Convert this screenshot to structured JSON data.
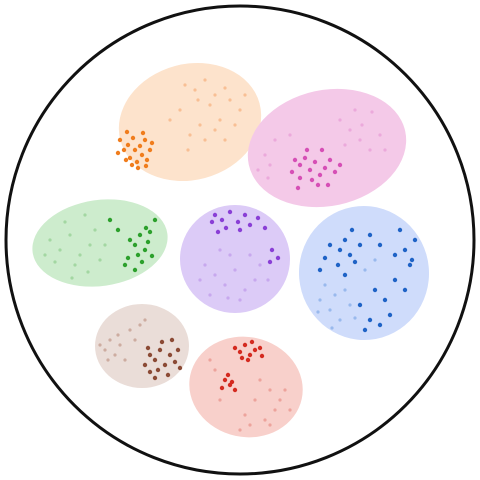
{
  "chart_data": {
    "type": "scatter",
    "title": "",
    "xlabel": "",
    "ylabel": "",
    "grid": false,
    "legend": "none",
    "boundary": "circle",
    "series": [
      {
        "color": "#f07d1d",
        "light_color": "#f7b88a",
        "fill": "#fde3cc",
        "strong_points": [
          [
            120,
            140
          ],
          [
            124,
            150
          ],
          [
            128,
            145
          ],
          [
            130,
            158
          ],
          [
            133,
            138
          ],
          [
            135,
            150
          ],
          [
            137,
            162
          ],
          [
            140,
            146
          ],
          [
            142,
            155
          ],
          [
            145,
            140
          ],
          [
            147,
            160
          ],
          [
            150,
            150
          ],
          [
            127,
            132
          ],
          [
            143,
            133
          ],
          [
            138,
            168
          ],
          [
            132,
            165
          ],
          [
            126,
            160
          ],
          [
            152,
            143
          ],
          [
            118,
            153
          ],
          [
            146,
            166
          ]
        ],
        "weak_points": [
          [
            185,
            85
          ],
          [
            195,
            90
          ],
          [
            205,
            80
          ],
          [
            215,
            95
          ],
          [
            225,
            88
          ],
          [
            210,
            105
          ],
          [
            198,
            100
          ],
          [
            230,
            100
          ],
          [
            240,
            110
          ],
          [
            220,
            120
          ],
          [
            200,
            125
          ],
          [
            190,
            135
          ],
          [
            205,
            140
          ],
          [
            215,
            130
          ],
          [
            225,
            140
          ],
          [
            235,
            125
          ],
          [
            180,
            110
          ],
          [
            170,
            120
          ],
          [
            245,
            95
          ],
          [
            188,
            150
          ]
        ]
      },
      {
        "color": "#d64fb6",
        "light_color": "#e9a3d8",
        "fill": "#f4c9e8",
        "strong_points": [
          [
            295,
            160
          ],
          [
            300,
            165
          ],
          [
            305,
            158
          ],
          [
            310,
            170
          ],
          [
            315,
            162
          ],
          [
            320,
            175
          ],
          [
            325,
            168
          ],
          [
            330,
            160
          ],
          [
            312,
            180
          ],
          [
            318,
            185
          ],
          [
            300,
            178
          ],
          [
            292,
            172
          ],
          [
            335,
            172
          ],
          [
            322,
            150
          ],
          [
            307,
            150
          ],
          [
            328,
            185
          ],
          [
            298,
            188
          ],
          [
            340,
            165
          ]
        ],
        "weak_points": [
          [
            265,
            155
          ],
          [
            270,
            165
          ],
          [
            258,
            170
          ],
          [
            275,
            140
          ],
          [
            290,
            135
          ],
          [
            340,
            120
          ],
          [
            350,
            130
          ],
          [
            360,
            140
          ],
          [
            370,
            150
          ],
          [
            355,
            110
          ],
          [
            380,
            135
          ],
          [
            345,
            145
          ],
          [
            268,
            178
          ],
          [
            385,
            150
          ],
          [
            362,
            125
          ],
          [
            372,
            112
          ]
        ]
      },
      {
        "color": "#2ca02c",
        "light_color": "#9bd49a",
        "fill": "#cdeccd",
        "strong_points": [
          [
            130,
            240
          ],
          [
            135,
            245
          ],
          [
            140,
            235
          ],
          [
            145,
            250
          ],
          [
            138,
            255
          ],
          [
            142,
            262
          ],
          [
            148,
            242
          ],
          [
            128,
            258
          ],
          [
            150,
            232
          ],
          [
            155,
            220
          ],
          [
            110,
            220
          ],
          [
            118,
            230
          ],
          [
            125,
            265
          ],
          [
            135,
            270
          ],
          [
            152,
            256
          ],
          [
            146,
            228
          ]
        ],
        "weak_points": [
          [
            50,
            240
          ],
          [
            60,
            250
          ],
          [
            70,
            235
          ],
          [
            80,
            255
          ],
          [
            90,
            245
          ],
          [
            75,
            265
          ],
          [
            55,
            262
          ],
          [
            95,
            230
          ],
          [
            85,
            215
          ],
          [
            65,
            222
          ],
          [
            100,
            260
          ],
          [
            45,
            255
          ],
          [
            88,
            272
          ],
          [
            105,
            245
          ],
          [
            72,
            278
          ]
        ]
      },
      {
        "color": "#8a3fd6",
        "light_color": "#c3a2ec",
        "fill": "#dccbf7",
        "strong_points": [
          [
            215,
            215
          ],
          [
            222,
            220
          ],
          [
            230,
            212
          ],
          [
            238,
            222
          ],
          [
            245,
            215
          ],
          [
            250,
            225
          ],
          [
            258,
            218
          ],
          [
            226,
            228
          ],
          [
            218,
            232
          ],
          [
            265,
            228
          ],
          [
            272,
            250
          ],
          [
            278,
            258
          ],
          [
            270,
            262
          ],
          [
            212,
            222
          ],
          [
            240,
            230
          ]
        ],
        "weak_points": [
          [
            205,
            265
          ],
          [
            215,
            275
          ],
          [
            225,
            285
          ],
          [
            235,
            270
          ],
          [
            245,
            290
          ],
          [
            255,
            280
          ],
          [
            230,
            255
          ],
          [
            220,
            250
          ],
          [
            240,
            300
          ],
          [
            210,
            295
          ],
          [
            260,
            265
          ],
          [
            250,
            255
          ],
          [
            200,
            280
          ],
          [
            268,
            280
          ],
          [
            228,
            298
          ]
        ]
      },
      {
        "color": "#1f63c6",
        "light_color": "#8fb3ea",
        "fill": "#cfdcfb",
        "strong_points": [
          [
            330,
            245
          ],
          [
            340,
            250
          ],
          [
            345,
            240
          ],
          [
            350,
            255
          ],
          [
            355,
            262
          ],
          [
            360,
            245
          ],
          [
            338,
            265
          ],
          [
            325,
            258
          ],
          [
            370,
            235
          ],
          [
            380,
            245
          ],
          [
            395,
            255
          ],
          [
            405,
            250
          ],
          [
            410,
            265
          ],
          [
            415,
            240
          ],
          [
            400,
            230
          ],
          [
            375,
            290
          ],
          [
            385,
            300
          ],
          [
            390,
            315
          ],
          [
            370,
            320
          ],
          [
            360,
            305
          ],
          [
            395,
            280
          ],
          [
            345,
            275
          ],
          [
            352,
            230
          ],
          [
            320,
            270
          ],
          [
            412,
            260
          ],
          [
            405,
            290
          ],
          [
            380,
            325
          ],
          [
            365,
            330
          ]
        ],
        "weak_points": [
          [
            320,
            300
          ],
          [
            330,
            310
          ],
          [
            340,
            320
          ],
          [
            335,
            295
          ],
          [
            350,
            305
          ],
          [
            325,
            285
          ],
          [
            345,
            290
          ],
          [
            365,
            270
          ],
          [
            375,
            260
          ],
          [
            318,
            312
          ],
          [
            332,
            328
          ],
          [
            355,
            318
          ]
        ]
      },
      {
        "color": "#8b4a35",
        "light_color": "#c8a396",
        "fill": "#eaddd8",
        "strong_points": [
          [
            150,
            355
          ],
          [
            155,
            360
          ],
          [
            160,
            350
          ],
          [
            165,
            365
          ],
          [
            170,
            355
          ],
          [
            175,
            362
          ],
          [
            158,
            370
          ],
          [
            150,
            372
          ],
          [
            145,
            365
          ],
          [
            168,
            375
          ],
          [
            178,
            350
          ],
          [
            162,
            342
          ],
          [
            172,
            340
          ],
          [
            155,
            378
          ],
          [
            180,
            368
          ],
          [
            148,
            348
          ]
        ],
        "weak_points": [
          [
            100,
            345
          ],
          [
            105,
            350
          ],
          [
            110,
            340
          ],
          [
            115,
            355
          ],
          [
            120,
            345
          ],
          [
            130,
            330
          ],
          [
            140,
            325
          ],
          [
            135,
            340
          ],
          [
            108,
            360
          ],
          [
            125,
            360
          ],
          [
            145,
            320
          ],
          [
            118,
            335
          ]
        ]
      },
      {
        "color": "#d42a20",
        "light_color": "#eb9b94",
        "fill": "#f8d0cb",
        "strong_points": [
          [
            235,
            348
          ],
          [
            240,
            352
          ],
          [
            245,
            345
          ],
          [
            250,
            355
          ],
          [
            255,
            350
          ],
          [
            260,
            348
          ],
          [
            248,
            360
          ],
          [
            262,
            356
          ],
          [
            225,
            380
          ],
          [
            230,
            385
          ],
          [
            228,
            375
          ],
          [
            235,
            390
          ],
          [
            222,
            388
          ],
          [
            242,
            358
          ],
          [
            232,
            382
          ],
          [
            252,
            342
          ]
        ],
        "weak_points": [
          [
            210,
            360
          ],
          [
            215,
            370
          ],
          [
            260,
            380
          ],
          [
            270,
            390
          ],
          [
            280,
            400
          ],
          [
            275,
            410
          ],
          [
            265,
            420
          ],
          [
            250,
            425
          ],
          [
            240,
            430
          ],
          [
            285,
            390
          ],
          [
            290,
            410
          ],
          [
            220,
            400
          ],
          [
            255,
            400
          ],
          [
            245,
            415
          ],
          [
            270,
            425
          ]
        ]
      }
    ]
  }
}
